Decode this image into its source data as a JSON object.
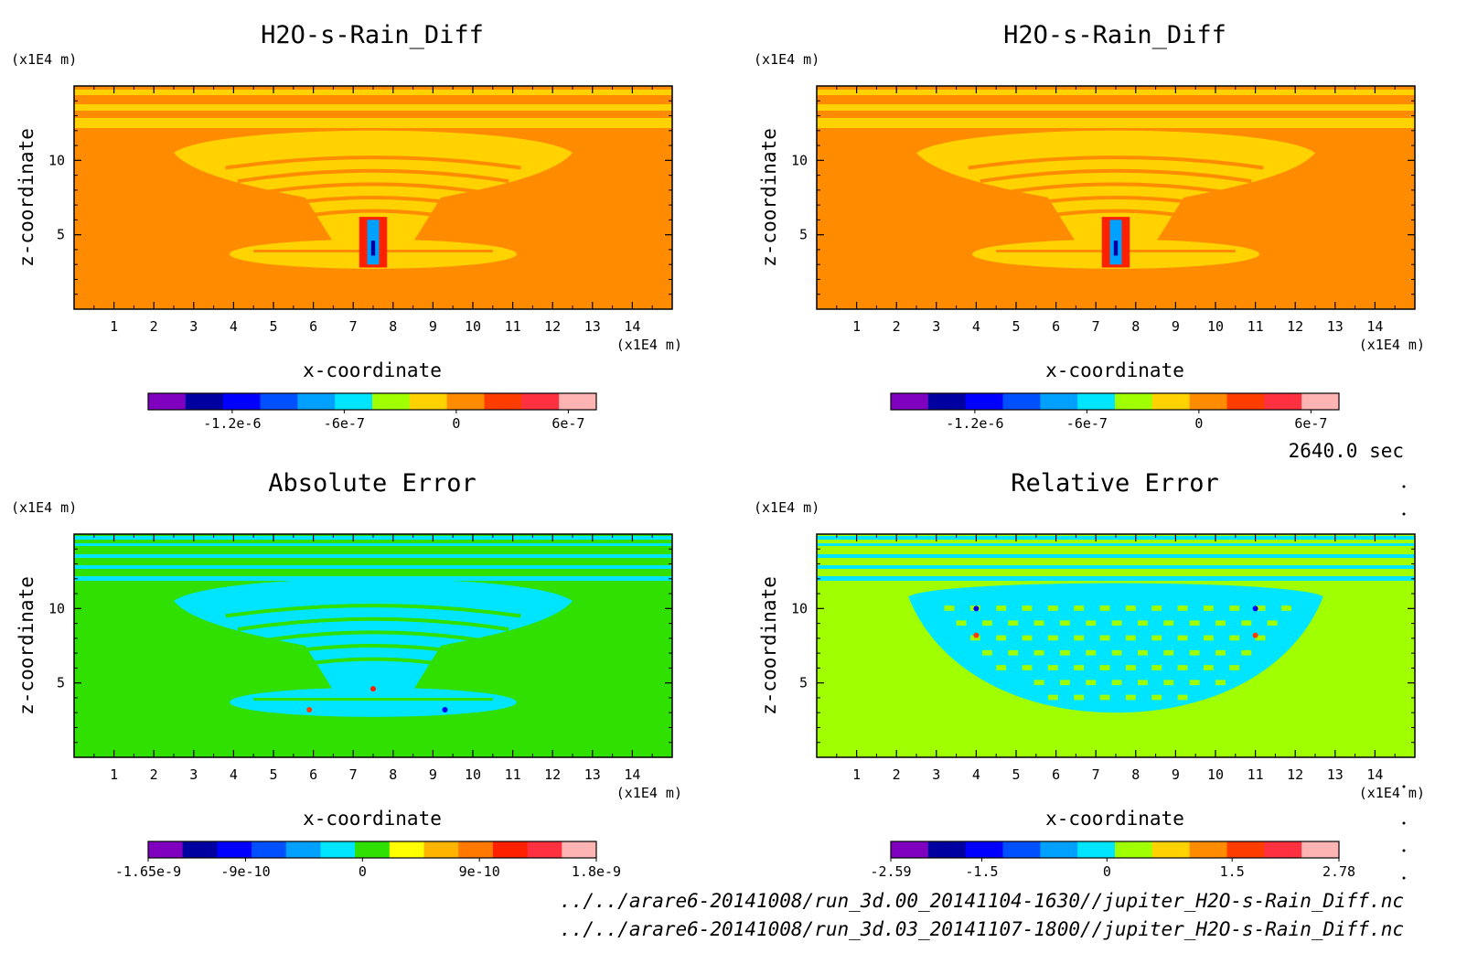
{
  "time_label": "2640.0 sec",
  "files": [
    "../../arare6-20141008/run_3d.00_20141104-1630//jupiter_H2O-s-Rain_Diff.nc",
    "../../arare6-20141008/run_3d.03_20141107-1800//jupiter_H2O-s-Rain_Diff.nc"
  ],
  "chart_data": [
    {
      "type": "heatmap",
      "title": "H2O-s-Rain_Diff",
      "xlabel": "x-coordinate",
      "ylabel": "z-coordinate",
      "x_unit": "(x1E4 m)",
      "y_unit": "(x1E4 m)",
      "xlim": [
        0,
        15
      ],
      "ylim": [
        0,
        15
      ],
      "x_ticks": [
        "1",
        "2",
        "3",
        "4",
        "5",
        "6",
        "7",
        "8",
        "9",
        "10",
        "11",
        "12",
        "13",
        "14"
      ],
      "y_ticks": [
        "5",
        "10"
      ],
      "background_color": "#ff8c00",
      "colorbar": {
        "colors": [
          "#7f00bf",
          "#0000a0",
          "#0000ff",
          "#0050ff",
          "#00a0ff",
          "#00e5ff",
          "#a0ff00",
          "#ffd200",
          "#ff8c00",
          "#ff3c00",
          "#ff3040",
          "#ffb4b4"
        ],
        "tick_labels": [
          "-1.2e-6",
          "-6e-7",
          "0",
          "6e-7"
        ],
        "tick_values": [
          -1.2e-06,
          -6e-07,
          0,
          6e-07
        ],
        "range": [
          -1.65e-06,
          7.5e-07
        ]
      }
    },
    {
      "type": "heatmap",
      "title": "H2O-s-Rain_Diff",
      "xlabel": "x-coordinate",
      "ylabel": "z-coordinate",
      "x_unit": "(x1E4 m)",
      "y_unit": "(x1E4 m)",
      "xlim": [
        0,
        15
      ],
      "ylim": [
        0,
        15
      ],
      "x_ticks": [
        "1",
        "2",
        "3",
        "4",
        "5",
        "6",
        "7",
        "8",
        "9",
        "10",
        "11",
        "12",
        "13",
        "14"
      ],
      "y_ticks": [
        "5",
        "10"
      ],
      "background_color": "#ff8c00",
      "colorbar": {
        "colors": [
          "#7f00bf",
          "#0000a0",
          "#0000ff",
          "#0050ff",
          "#00a0ff",
          "#00e5ff",
          "#a0ff00",
          "#ffd200",
          "#ff8c00",
          "#ff3c00",
          "#ff3040",
          "#ffb4b4"
        ],
        "tick_labels": [
          "-1.2e-6",
          "-6e-7",
          "0",
          "6e-7"
        ],
        "tick_values": [
          -1.2e-06,
          -6e-07,
          0,
          6e-07
        ],
        "range": [
          -1.65e-06,
          7.5e-07
        ]
      }
    },
    {
      "type": "heatmap",
      "title": "Absolute Error",
      "xlabel": "x-coordinate",
      "ylabel": "z-coordinate",
      "x_unit": "(x1E4 m)",
      "y_unit": "(x1E4 m)",
      "xlim": [
        0,
        15
      ],
      "ylim": [
        0,
        15
      ],
      "x_ticks": [
        "1",
        "2",
        "3",
        "4",
        "5",
        "6",
        "7",
        "8",
        "9",
        "10",
        "11",
        "12",
        "13",
        "14"
      ],
      "y_ticks": [
        "5",
        "10"
      ],
      "background_color": "#30e000",
      "colorbar": {
        "colors": [
          "#7f00bf",
          "#0000a0",
          "#0000ff",
          "#0050ff",
          "#00a0ff",
          "#00e5ff",
          "#30e000",
          "#ffff00",
          "#ffb400",
          "#ff7800",
          "#ff2000",
          "#ff3040",
          "#ffb4b4"
        ],
        "tick_labels": [
          "-1.65e-9",
          "-9e-10",
          "0",
          "9e-10",
          "1.8e-9"
        ],
        "tick_values": [
          -1.65e-09,
          -9e-10,
          0,
          9e-10,
          1.8e-09
        ],
        "range": [
          -1.65e-09,
          1.8e-09
        ]
      }
    },
    {
      "type": "heatmap",
      "title": "Relative Error",
      "xlabel": "x-coordinate",
      "ylabel": "z-coordinate",
      "x_unit": "(x1E4 m)",
      "y_unit": "(x1E4 m)",
      "xlim": [
        0,
        15
      ],
      "ylim": [
        0,
        15
      ],
      "x_ticks": [
        "1",
        "2",
        "3",
        "4",
        "5",
        "6",
        "7",
        "8",
        "9",
        "10",
        "11",
        "12",
        "13",
        "14"
      ],
      "y_ticks": [
        "5",
        "10"
      ],
      "background_color": "#a0ff00",
      "colorbar": {
        "colors": [
          "#7f00bf",
          "#0000a0",
          "#0000ff",
          "#0050ff",
          "#00a0ff",
          "#00e5ff",
          "#a0ff00",
          "#ffd200",
          "#ff8c00",
          "#ff3c00",
          "#ff3040",
          "#ffb4b4"
        ],
        "tick_labels": [
          "-2.59",
          "-1.5",
          "0",
          "1.5",
          "2.78"
        ],
        "tick_values": [
          -2.59,
          -1.5,
          0,
          1.5,
          2.78
        ],
        "range": [
          -2.59,
          2.78
        ]
      }
    }
  ]
}
